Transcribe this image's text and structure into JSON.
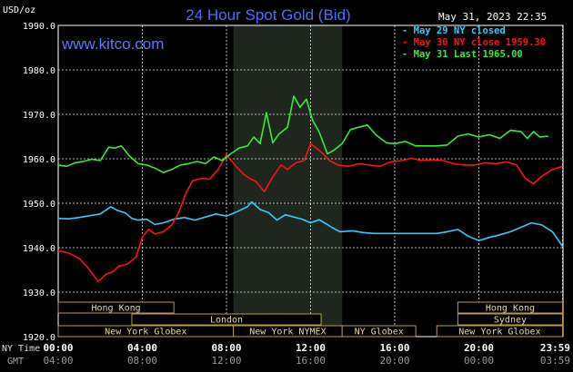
{
  "header": {
    "title": "24 Hour Spot Gold (Bid)",
    "unit_label": "USD/oz",
    "timestamp": "May 31, 2023 22:35",
    "watermark": "www.kitco.com"
  },
  "colors": {
    "background": "#000000",
    "grid": "#ffffff",
    "nymex_shade": "#1e261e",
    "may29": "#33ccff",
    "may30": "#ff1111",
    "may31": "#33ee33",
    "session_fill": "#000000",
    "session_border": "#b59b4a",
    "session_text": "#e8d7a0"
  },
  "chart_data": {
    "type": "line",
    "title": "24 Hour Spot Gold (Bid)",
    "ylabel": "USD/oz",
    "ylim": [
      1920,
      1990
    ],
    "yticks": [
      {
        "value": 1990,
        "label": "1990.0"
      },
      {
        "value": 1980,
        "label": "1980.0"
      },
      {
        "value": 1970,
        "label": "1970.0"
      },
      {
        "value": 1960,
        "label": "1960.0"
      },
      {
        "value": 1950,
        "label": "1950.0"
      },
      {
        "value": 1940,
        "label": "1940.0"
      },
      {
        "value": 1930,
        "label": "1930.0"
      },
      {
        "value": 1920,
        "label": "1920.0"
      }
    ],
    "xlim": [
      0,
      24
    ],
    "xticks": [
      {
        "hour": 0,
        "ny": "00:00",
        "gmt": "04:00"
      },
      {
        "hour": 4,
        "ny": "04:00",
        "gmt": "08:00"
      },
      {
        "hour": 8,
        "ny": "08:00",
        "gmt": "12:00"
      },
      {
        "hour": 12,
        "ny": "12:00",
        "gmt": "16:00"
      },
      {
        "hour": 16,
        "ny": "16:00",
        "gmt": "20:00"
      },
      {
        "hour": 20,
        "ny": "20:00",
        "gmt": "00:00"
      },
      {
        "hour": 23.98,
        "ny": "23:59",
        "gmt": "03:59"
      }
    ],
    "x_axis_rows": {
      "ny": "NY Time",
      "gmt": "GMT"
    },
    "nymex_shade_hours": [
      8.33,
      13.5
    ],
    "legend": [
      {
        "text": "May 29 NY closed",
        "series": "may29"
      },
      {
        "text": "May 30 NY close 1959.30",
        "series": "may30"
      },
      {
        "text": "May 31 Last 1965.00",
        "series": "may31"
      }
    ],
    "legend_position": "top-right",
    "grid": true,
    "series": [
      {
        "name": "May 29 NY closed",
        "key": "may29",
        "points": [
          [
            0,
            1946.6
          ],
          [
            0.5,
            1946.5
          ],
          [
            1,
            1946.8
          ],
          [
            1.5,
            1947.2
          ],
          [
            2,
            1947.6
          ],
          [
            2.5,
            1949.2
          ],
          [
            2.8,
            1948.4
          ],
          [
            3.2,
            1947.8
          ],
          [
            3.5,
            1946.6
          ],
          [
            3.8,
            1946.2
          ],
          [
            4.2,
            1946.4
          ],
          [
            4.6,
            1945.2
          ],
          [
            5,
            1945.6
          ],
          [
            5.5,
            1946.4
          ],
          [
            6,
            1946.8
          ],
          [
            6.5,
            1946.2
          ],
          [
            7,
            1946.9
          ],
          [
            7.5,
            1947.6
          ],
          [
            8,
            1947.1
          ],
          [
            8.5,
            1948.1
          ],
          [
            9,
            1949.2
          ],
          [
            9.2,
            1950.3
          ],
          [
            9.6,
            1948.6
          ],
          [
            10,
            1947.9
          ],
          [
            10.4,
            1946.2
          ],
          [
            10.8,
            1947.4
          ],
          [
            11.2,
            1946.9
          ],
          [
            11.6,
            1946.4
          ],
          [
            12,
            1945.6
          ],
          [
            12.4,
            1946.3
          ],
          [
            12.8,
            1945.2
          ],
          [
            13,
            1944.6
          ],
          [
            13.4,
            1943.6
          ],
          [
            14,
            1943.8
          ],
          [
            14.5,
            1943.4
          ],
          [
            15,
            1943.2
          ],
          [
            16,
            1943.2
          ],
          [
            17,
            1943.2
          ],
          [
            18,
            1943.2
          ],
          [
            18.5,
            1943.6
          ],
          [
            19,
            1944.1
          ],
          [
            19.5,
            1942.6
          ],
          [
            20,
            1941.6
          ],
          [
            20.5,
            1942.3
          ],
          [
            21,
            1942.9
          ],
          [
            21.5,
            1943.6
          ],
          [
            22,
            1944.6
          ],
          [
            22.5,
            1945.6
          ],
          [
            23,
            1945.1
          ],
          [
            23.5,
            1943.6
          ],
          [
            23.98,
            1940.3
          ]
        ]
      },
      {
        "name": "May 30 NY close 1959.30",
        "key": "may30",
        "points": [
          [
            0,
            1939.3
          ],
          [
            0.5,
            1938.8
          ],
          [
            1,
            1937.6
          ],
          [
            1.4,
            1935.6
          ],
          [
            1.9,
            1932.4
          ],
          [
            2.3,
            1934.1
          ],
          [
            2.6,
            1934.6
          ],
          [
            2.9,
            1935.9
          ],
          [
            3.3,
            1936.3
          ],
          [
            3.7,
            1937.9
          ],
          [
            4,
            1942.4
          ],
          [
            4.3,
            1944.1
          ],
          [
            4.6,
            1943.1
          ],
          [
            5,
            1943.6
          ],
          [
            5.4,
            1945.1
          ],
          [
            5.7,
            1947.6
          ],
          [
            6.1,
            1952.6
          ],
          [
            6.4,
            1955.1
          ],
          [
            6.8,
            1955.6
          ],
          [
            7.2,
            1955.4
          ],
          [
            7.6,
            1957.6
          ],
          [
            8,
            1960.9
          ],
          [
            8.4,
            1958.6
          ],
          [
            8.8,
            1956.6
          ],
          [
            9.1,
            1955.6
          ],
          [
            9.4,
            1954.9
          ],
          [
            9.8,
            1952.6
          ],
          [
            10.2,
            1955.9
          ],
          [
            10.6,
            1958.6
          ],
          [
            10.9,
            1957.6
          ],
          [
            11.3,
            1959.1
          ],
          [
            11.7,
            1959.6
          ],
          [
            12,
            1963.4
          ],
          [
            12.3,
            1962.3
          ],
          [
            12.6,
            1961.1
          ],
          [
            12.9,
            1959.6
          ],
          [
            13.3,
            1958.6
          ],
          [
            13.8,
            1958.3
          ],
          [
            14.3,
            1958.9
          ],
          [
            14.8,
            1958.6
          ],
          [
            15.3,
            1958.3
          ],
          [
            15.8,
            1959.3
          ],
          [
            16.3,
            1959.6
          ],
          [
            16.8,
            1960.1
          ],
          [
            17.3,
            1959.6
          ],
          [
            17.8,
            1959.8
          ],
          [
            18.3,
            1959.6
          ],
          [
            18.8,
            1958.9
          ],
          [
            19.3,
            1958.6
          ],
          [
            19.8,
            1958.6
          ],
          [
            20.3,
            1959.1
          ],
          [
            20.8,
            1958.9
          ],
          [
            21.3,
            1959.3
          ],
          [
            21.8,
            1958.6
          ],
          [
            22.2,
            1955.6
          ],
          [
            22.6,
            1954.4
          ],
          [
            23,
            1956.1
          ],
          [
            23.5,
            1957.6
          ],
          [
            23.98,
            1958.3
          ]
        ]
      },
      {
        "name": "May 31 Last 1965.00",
        "key": "may31",
        "points": [
          [
            0,
            1958.6
          ],
          [
            0.4,
            1958.3
          ],
          [
            0.8,
            1959.1
          ],
          [
            1.2,
            1959.4
          ],
          [
            1.6,
            1959.9
          ],
          [
            2,
            1959.6
          ],
          [
            2.4,
            1962.6
          ],
          [
            2.7,
            1962.4
          ],
          [
            3,
            1962.9
          ],
          [
            3.4,
            1960.6
          ],
          [
            3.8,
            1958.9
          ],
          [
            4.2,
            1958.6
          ],
          [
            4.6,
            1957.9
          ],
          [
            5,
            1956.9
          ],
          [
            5.4,
            1957.6
          ],
          [
            5.8,
            1958.6
          ],
          [
            6.2,
            1958.9
          ],
          [
            6.6,
            1959.4
          ],
          [
            7,
            1958.9
          ],
          [
            7.4,
            1960.4
          ],
          [
            7.8,
            1959.6
          ],
          [
            8.2,
            1961.1
          ],
          [
            8.6,
            1962.4
          ],
          [
            9,
            1962.9
          ],
          [
            9.3,
            1964.9
          ],
          [
            9.6,
            1963.4
          ],
          [
            9.9,
            1970.4
          ],
          [
            10.2,
            1963.6
          ],
          [
            10.5,
            1965.6
          ],
          [
            10.9,
            1967.1
          ],
          [
            11.2,
            1974.1
          ],
          [
            11.5,
            1971.6
          ],
          [
            11.8,
            1973.4
          ],
          [
            12.1,
            1968.6
          ],
          [
            12.4,
            1966.1
          ],
          [
            12.8,
            1961.1
          ],
          [
            13.1,
            1961.9
          ],
          [
            13.5,
            1963.4
          ],
          [
            13.9,
            1966.6
          ],
          [
            14.3,
            1967.1
          ],
          [
            14.7,
            1967.6
          ],
          [
            15.1,
            1965.4
          ],
          [
            15.6,
            1963.6
          ],
          [
            16,
            1963.4
          ],
          [
            16.5,
            1963.9
          ],
          [
            17,
            1962.9
          ],
          [
            17.5,
            1962.9
          ],
          [
            18,
            1962.9
          ],
          [
            18.5,
            1963.1
          ],
          [
            19,
            1965.1
          ],
          [
            19.5,
            1965.6
          ],
          [
            20,
            1964.9
          ],
          [
            20.5,
            1965.4
          ],
          [
            21,
            1964.6
          ],
          [
            21.5,
            1966.4
          ],
          [
            22,
            1966.1
          ],
          [
            22.3,
            1964.6
          ],
          [
            22.6,
            1966.1
          ],
          [
            22.9,
            1964.9
          ],
          [
            23.3,
            1965.1
          ]
        ]
      }
    ]
  },
  "sessions": {
    "rows": [
      [
        {
          "label": "Hong Kong",
          "start": 0,
          "end": 5.5
        },
        {
          "label": "Hong Kong",
          "start": 19,
          "end": 23.98
        }
      ],
      [
        {
          "label": "London",
          "start": 3.5,
          "end": 12.5
        },
        {
          "label": "Sydney",
          "start": 19,
          "end": 23.98
        }
      ],
      [
        {
          "label": "New York Globex",
          "start": 0,
          "end": 8.33
        },
        {
          "label": "New York NYMEX",
          "start": 8.33,
          "end": 13.5
        },
        {
          "label": "NY Globex",
          "start": 13.5,
          "end": 17
        },
        {
          "label": "New York Globex",
          "start": 18,
          "end": 23.98
        }
      ]
    ]
  }
}
